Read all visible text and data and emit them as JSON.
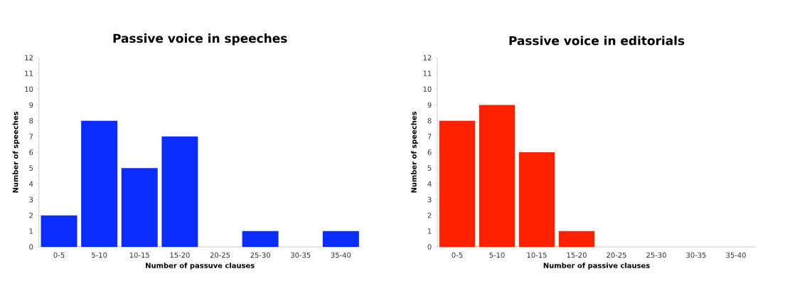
{
  "chart_data": [
    {
      "type": "bar",
      "title": "Passive voice in speeches",
      "xlabel": "Number of passuve clauses",
      "ylabel": "Number of speeches",
      "categories": [
        "0-5",
        "5-10",
        "10-15",
        "15-20",
        "20-25",
        "25-30",
        "30-35",
        "35-40"
      ],
      "values": [
        2,
        8,
        5,
        7,
        0,
        1,
        0,
        1
      ],
      "color": "#0a2cff",
      "ylim": [
        0,
        12
      ],
      "yticks": [
        0,
        1,
        2,
        3,
        4,
        5,
        6,
        7,
        8,
        9,
        10,
        11,
        12
      ]
    },
    {
      "type": "bar",
      "title": "Passive voice in editorials",
      "xlabel": "Number of passive clauses",
      "ylabel": "Number of speeches",
      "categories": [
        "0-5",
        "5-10",
        "10-15",
        "15-20",
        "20-25",
        "25-30",
        "30-35",
        "35-40"
      ],
      "values": [
        8,
        9,
        6,
        1,
        0,
        0,
        0,
        0
      ],
      "color": "#ff2200",
      "ylim": [
        0,
        12
      ],
      "yticks": [
        0,
        1,
        2,
        3,
        4,
        5,
        6,
        7,
        8,
        9,
        10,
        11,
        12
      ]
    }
  ]
}
